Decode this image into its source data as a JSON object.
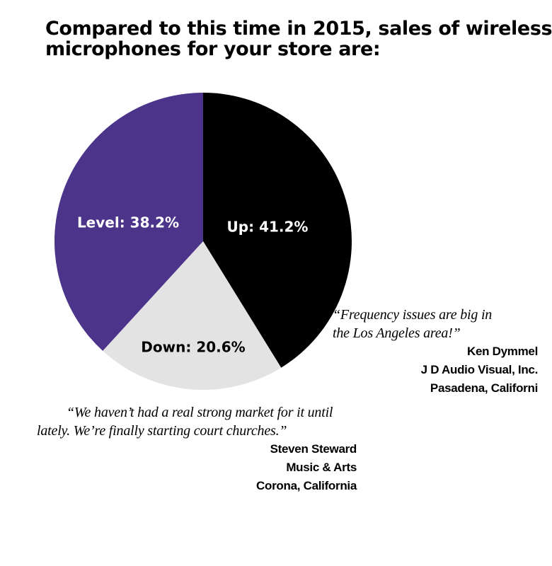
{
  "chart_data": {
    "type": "pie",
    "title_lines": [
      "Compared to this time in 2015, sales of wireless",
      "microphones for your store are:"
    ],
    "slices": [
      {
        "name": "Up",
        "value": 41.2,
        "label": "Up: 41.2%",
        "color": "#000000",
        "label_color": "#ffffff"
      },
      {
        "name": "Down",
        "value": 20.6,
        "label": "Down: 20.6%",
        "color": "#e3e3e3",
        "label_color": "#000000"
      },
      {
        "name": "Level",
        "value": 38.2,
        "label": "Level: 38.2%",
        "color": "#4b3489",
        "label_color": "#ffffff"
      }
    ],
    "start_angle": "12 o'clock",
    "direction": "clockwise",
    "legend": "none"
  },
  "quotes": [
    {
      "text_lines": [
        "“Frequency issues are big in",
        "the Los Angeles area!”"
      ],
      "attribution": [
        "Ken Dymmel",
        "J D Audio Visual, Inc.",
        "Pasadena, Californi"
      ]
    },
    {
      "text_lines": [
        "“We haven’t had a real strong market for it until",
        "lately. We’re finally starting court churches.”"
      ],
      "attribution": [
        "Steven Steward",
        "Music & Arts",
        "Corona, California"
      ]
    }
  ]
}
